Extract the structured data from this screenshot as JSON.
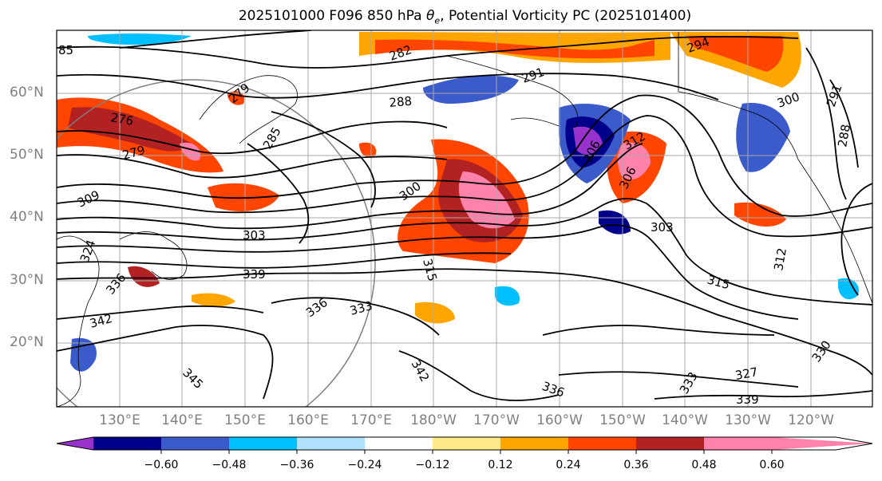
{
  "title_parts": {
    "prefix": "2025101000 F096 850 hPa ",
    "theta": "θ",
    "sub": "e",
    "suffix": ", Potential Vorticity PC (2025101400)"
  },
  "lat_labels": [
    "60°N",
    "50°N",
    "40°N",
    "30°N",
    "20°N"
  ],
  "lon_labels": [
    "130°E",
    "140°E",
    "150°E",
    "160°E",
    "170°E",
    "180°W",
    "170°W",
    "160°W",
    "150°W",
    "140°W",
    "130°W",
    "120°W"
  ],
  "contour_labels": [
    "85",
    "282",
    "294",
    "279",
    "291",
    "288",
    "276",
    "300",
    "291",
    "285",
    "288",
    "279",
    "306",
    "312",
    "306",
    "309",
    "300",
    "303",
    "303",
    "315",
    "324",
    "312",
    "339",
    "315",
    "336",
    "333",
    "342",
    "342",
    "336",
    "330",
    "345",
    "333",
    "327",
    "339",
    "336"
  ],
  "colorbar": {
    "ticks": [
      "−0.60",
      "−0.48",
      "−0.36",
      "−0.24",
      "−0.12",
      "0.12",
      "0.24",
      "0.36",
      "0.48",
      "0.60"
    ],
    "colors": [
      "#9932CC",
      "#00008B",
      "#3A5BC9",
      "#00BFFF",
      "#B0E2FF",
      "#FFFFFF",
      "#FFE98A",
      "#FFA500",
      "#FF4500",
      "#B22222",
      "#FF82AB"
    ]
  }
}
